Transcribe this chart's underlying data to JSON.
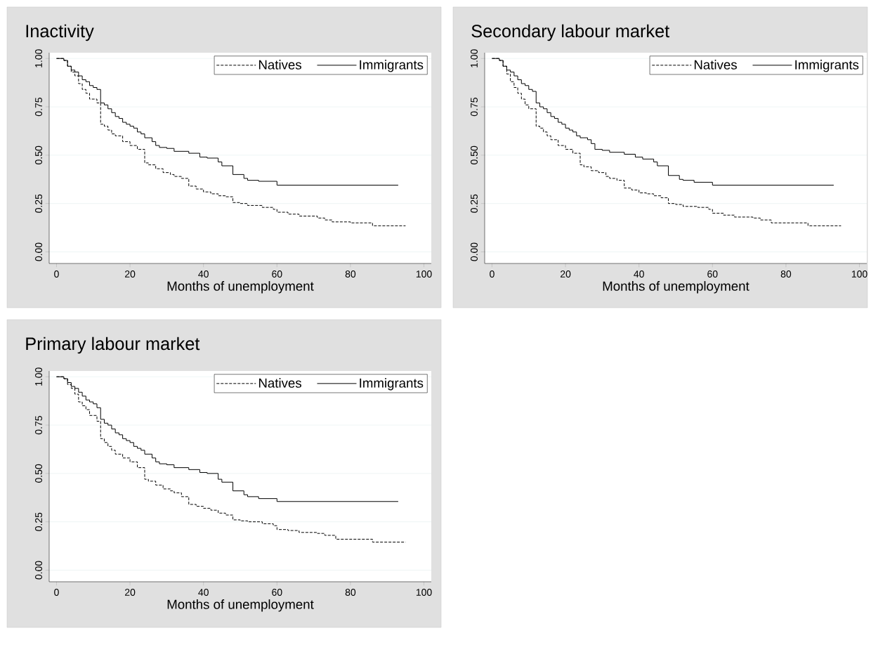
{
  "chart_data": [
    {
      "type": "step",
      "title": "Inactivity",
      "xlabel": "Months of unemployment",
      "xlim": [
        -2,
        102
      ],
      "ylim": [
        -0.06,
        1.03
      ],
      "xticks": [
        0,
        20,
        40,
        60,
        80,
        100
      ],
      "yticks": [
        {
          "value": 0,
          "label": "0.00"
        },
        {
          "value": 0.25,
          "label": "0.25"
        },
        {
          "value": 0.5,
          "label": "0.50"
        },
        {
          "value": 0.75,
          "label": "0.75"
        },
        {
          "value": 1,
          "label": "1.00"
        }
      ],
      "grid": "y",
      "legend": "top right",
      "series": [
        {
          "name": "Natives",
          "color": "#000000",
          "line_style": "dashed",
          "x": [
            0,
            2,
            3,
            4,
            5,
            6,
            7,
            8,
            9,
            11,
            12,
            13,
            14,
            15,
            16,
            18,
            20,
            22,
            24,
            25,
            27,
            29,
            31,
            32,
            34,
            36,
            38,
            40,
            42,
            44,
            46,
            48,
            50,
            52,
            56,
            59,
            60,
            63,
            66,
            71,
            73,
            75,
            80,
            86,
            95
          ],
          "values": [
            1,
            0.99,
            0.96,
            0.93,
            0.91,
            0.87,
            0.84,
            0.82,
            0.79,
            0.77,
            0.66,
            0.65,
            0.63,
            0.61,
            0.6,
            0.57,
            0.55,
            0.53,
            0.46,
            0.45,
            0.43,
            0.41,
            0.4,
            0.39,
            0.38,
            0.34,
            0.325,
            0.31,
            0.3,
            0.29,
            0.285,
            0.255,
            0.25,
            0.24,
            0.23,
            0.22,
            0.205,
            0.195,
            0.185,
            0.175,
            0.165,
            0.155,
            0.15,
            0.135,
            0.135
          ]
        },
        {
          "name": "Immigrants",
          "color": "#000000",
          "line_style": "solid",
          "x": [
            0,
            2,
            3,
            4,
            5,
            6,
            7,
            8,
            9,
            10,
            11,
            12,
            13,
            14,
            15,
            16,
            17,
            18,
            19,
            20,
            21,
            22,
            23,
            24,
            26,
            27,
            28,
            30,
            32,
            36,
            39,
            41,
            44,
            45,
            48,
            51,
            52,
            55,
            60,
            93
          ],
          "values": [
            1,
            0.99,
            0.96,
            0.94,
            0.93,
            0.91,
            0.89,
            0.88,
            0.86,
            0.85,
            0.84,
            0.77,
            0.76,
            0.74,
            0.72,
            0.7,
            0.69,
            0.67,
            0.66,
            0.65,
            0.64,
            0.62,
            0.61,
            0.59,
            0.57,
            0.55,
            0.54,
            0.535,
            0.52,
            0.51,
            0.49,
            0.485,
            0.465,
            0.445,
            0.4,
            0.38,
            0.37,
            0.365,
            0.345,
            0.345
          ]
        }
      ]
    },
    {
      "type": "step",
      "title": "Secondary labour market",
      "xlabel": "Months of unemployment",
      "xlim": [
        -2,
        102
      ],
      "ylim": [
        -0.06,
        1.03
      ],
      "xticks": [
        0,
        20,
        40,
        60,
        80,
        100
      ],
      "yticks": [
        {
          "value": 0,
          "label": "0.00"
        },
        {
          "value": 0.25,
          "label": "0.25"
        },
        {
          "value": 0.5,
          "label": "0.50"
        },
        {
          "value": 0.75,
          "label": "0.75"
        },
        {
          "value": 1,
          "label": "1.00"
        }
      ],
      "grid": "y",
      "legend": "top right",
      "series": [
        {
          "name": "Natives",
          "color": "#000000",
          "line_style": "dashed",
          "x": [
            0,
            2,
            3,
            4,
            5,
            6,
            7,
            8,
            9,
            10,
            12,
            13,
            14,
            15,
            16,
            18,
            20,
            22,
            24,
            25,
            27,
            29,
            31,
            32,
            34,
            36,
            38,
            40,
            42,
            44,
            46,
            48,
            50,
            52,
            56,
            59,
            60,
            63,
            66,
            71,
            73,
            76,
            80,
            86,
            95
          ],
          "values": [
            1,
            0.99,
            0.96,
            0.92,
            0.88,
            0.85,
            0.82,
            0.79,
            0.76,
            0.74,
            0.65,
            0.64,
            0.62,
            0.6,
            0.58,
            0.55,
            0.53,
            0.51,
            0.45,
            0.44,
            0.42,
            0.41,
            0.39,
            0.38,
            0.37,
            0.33,
            0.32,
            0.305,
            0.3,
            0.29,
            0.28,
            0.25,
            0.245,
            0.235,
            0.23,
            0.22,
            0.2,
            0.19,
            0.18,
            0.175,
            0.165,
            0.15,
            0.15,
            0.135,
            0.135
          ]
        },
        {
          "name": "Immigrants",
          "color": "#000000",
          "line_style": "solid",
          "x": [
            0,
            2,
            3,
            4,
            5,
            6,
            7,
            8,
            9,
            10,
            11,
            12,
            13,
            14,
            15,
            16,
            17,
            18,
            19,
            20,
            21,
            22,
            23,
            24,
            26,
            27,
            28,
            30,
            32,
            36,
            39,
            41,
            44,
            45,
            48,
            51,
            52,
            55,
            60,
            93
          ],
          "values": [
            1,
            0.99,
            0.96,
            0.94,
            0.93,
            0.91,
            0.89,
            0.87,
            0.86,
            0.84,
            0.83,
            0.77,
            0.75,
            0.74,
            0.72,
            0.7,
            0.69,
            0.67,
            0.66,
            0.64,
            0.63,
            0.62,
            0.6,
            0.59,
            0.58,
            0.56,
            0.53,
            0.525,
            0.515,
            0.505,
            0.49,
            0.48,
            0.465,
            0.445,
            0.395,
            0.375,
            0.37,
            0.36,
            0.345,
            0.345
          ]
        }
      ]
    },
    {
      "type": "step",
      "title": "Primary labour market",
      "xlabel": "Months of unemployment",
      "xlim": [
        -2,
        102
      ],
      "ylim": [
        -0.06,
        1.03
      ],
      "xticks": [
        0,
        20,
        40,
        60,
        80,
        100
      ],
      "yticks": [
        {
          "value": 0,
          "label": "0.00"
        },
        {
          "value": 0.25,
          "label": "0.25"
        },
        {
          "value": 0.5,
          "label": "0.50"
        },
        {
          "value": 0.75,
          "label": "0.75"
        },
        {
          "value": 1,
          "label": "1.00"
        }
      ],
      "grid": "y",
      "legend": "top right",
      "series": [
        {
          "name": "Natives",
          "color": "#000000",
          "line_style": "dashed",
          "x": [
            0,
            2,
            3,
            4,
            5,
            6,
            7,
            8,
            9,
            11,
            12,
            13,
            14,
            15,
            16,
            18,
            20,
            22,
            24,
            25,
            27,
            29,
            31,
            32,
            34,
            36,
            38,
            40,
            42,
            44,
            46,
            48,
            50,
            52,
            56,
            59,
            60,
            63,
            66,
            71,
            73,
            76,
            80,
            86,
            95
          ],
          "values": [
            1,
            0.99,
            0.96,
            0.94,
            0.91,
            0.87,
            0.85,
            0.83,
            0.8,
            0.77,
            0.68,
            0.66,
            0.64,
            0.62,
            0.6,
            0.58,
            0.56,
            0.53,
            0.47,
            0.46,
            0.44,
            0.42,
            0.41,
            0.4,
            0.38,
            0.34,
            0.33,
            0.32,
            0.31,
            0.295,
            0.285,
            0.26,
            0.255,
            0.25,
            0.24,
            0.23,
            0.21,
            0.205,
            0.195,
            0.19,
            0.18,
            0.16,
            0.16,
            0.145,
            0.145
          ]
        },
        {
          "name": "Immigrants",
          "color": "#000000",
          "line_style": "solid",
          "x": [
            0,
            2,
            3,
            4,
            5,
            6,
            7,
            8,
            9,
            10,
            11,
            12,
            13,
            14,
            15,
            16,
            17,
            18,
            19,
            20,
            21,
            22,
            23,
            24,
            26,
            27,
            28,
            30,
            32,
            36,
            39,
            41,
            44,
            45,
            48,
            51,
            52,
            55,
            60,
            93
          ],
          "values": [
            1,
            0.99,
            0.97,
            0.95,
            0.94,
            0.92,
            0.9,
            0.88,
            0.87,
            0.86,
            0.84,
            0.78,
            0.76,
            0.75,
            0.73,
            0.71,
            0.7,
            0.68,
            0.67,
            0.66,
            0.64,
            0.63,
            0.62,
            0.6,
            0.58,
            0.56,
            0.55,
            0.545,
            0.53,
            0.52,
            0.505,
            0.5,
            0.47,
            0.455,
            0.41,
            0.39,
            0.38,
            0.37,
            0.355,
            0.355
          ]
        }
      ]
    }
  ]
}
